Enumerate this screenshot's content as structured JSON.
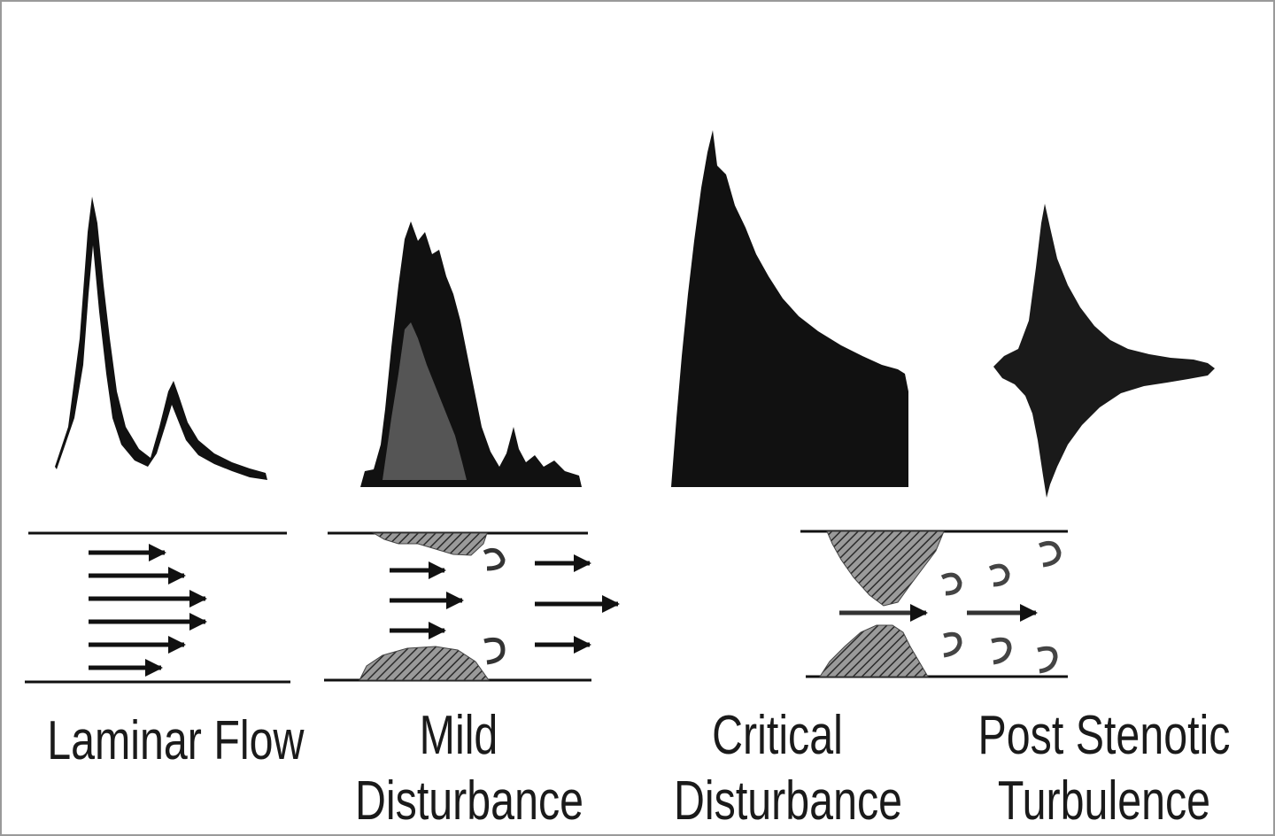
{
  "diagram": {
    "panels": [
      {
        "id": "laminar",
        "line1": "Laminar Flow",
        "line2": ""
      },
      {
        "id": "mild",
        "line1": "Mild",
        "line2": "Disturbance"
      },
      {
        "id": "critical",
        "line1": "Critical",
        "line2": "Disturbance"
      },
      {
        "id": "post",
        "line1": "Post Stenotic",
        "line2": "Turbulence"
      }
    ],
    "colors": {
      "ink": "#111111",
      "plaque": "#555555",
      "spectrum_fill": "#555555"
    }
  }
}
